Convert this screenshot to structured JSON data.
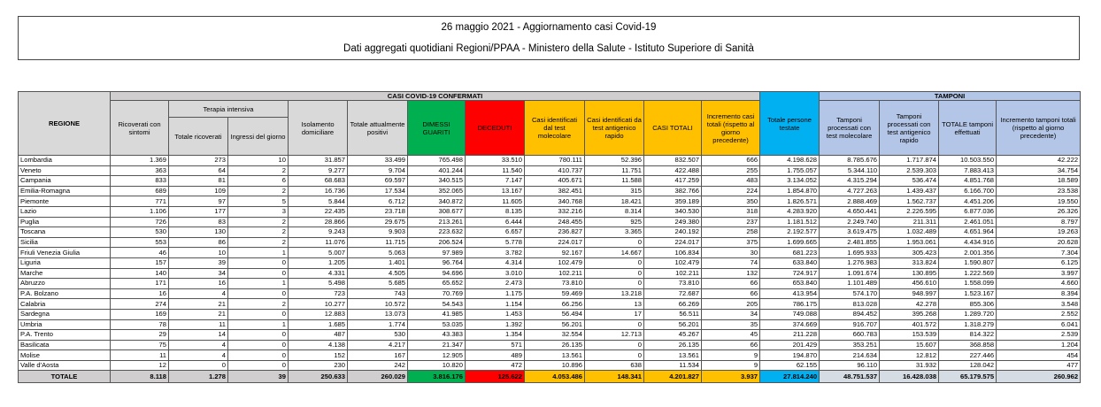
{
  "header": {
    "title": "26 maggio 2021 - Aggiornamento casi Covid-19",
    "subtitle": "Dati aggregati quotidiani Regioni/PPAA - Ministero della Salute - Istituto Superiore di Sanità"
  },
  "table": {
    "region_label": "REGIONE",
    "confirmed_label": "CASI COVID-19 CONFERMATI",
    "icu_label": "Terapia intensiva",
    "tamponi_label": "TAMPONI",
    "columns": [
      "Ricoverati con sintomi",
      "Totale ricoverati",
      "Ingressi del giorno",
      "Isolamento domiciliare",
      "Totale attualmente positivi",
      "DIMESSI GUARITI",
      "DECEDUTI",
      "Casi identificati dal test molecolare",
      "Casi identificati da test antigenico rapido",
      "CASI TOTALI",
      "Incremento casi totali (rispetto al giorno precedente)",
      "Totale persone testate",
      "Tamponi processati con test molecolare",
      "Tamponi processati con test antigenico rapido",
      "TOTALE tamponi effettuati",
      "Incremento tamponi totali (rispetto al giorno precedente)"
    ],
    "rows": [
      [
        "Lombardia",
        "1.369",
        "273",
        "10",
        "31.857",
        "33.499",
        "765.498",
        "33.510",
        "780.111",
        "52.396",
        "832.507",
        "666",
        "4.198.628",
        "8.785.676",
        "1.717.874",
        "10.503.550",
        "42.222"
      ],
      [
        "Veneto",
        "363",
        "64",
        "2",
        "9.277",
        "9.704",
        "401.244",
        "11.540",
        "410.737",
        "11.751",
        "422.488",
        "255",
        "1.755.057",
        "5.344.110",
        "2.539.303",
        "7.883.413",
        "34.754"
      ],
      [
        "Campania",
        "833",
        "81",
        "6",
        "68.683",
        "69.597",
        "340.515",
        "7.147",
        "405.671",
        "11.588",
        "417.259",
        "483",
        "3.134.052",
        "4.315.294",
        "536.474",
        "4.851.768",
        "18.589"
      ],
      [
        "Emilia-Romagna",
        "689",
        "109",
        "2",
        "16.736",
        "17.534",
        "352.065",
        "13.167",
        "382.451",
        "315",
        "382.766",
        "224",
        "1.854.870",
        "4.727.263",
        "1.439.437",
        "6.166.700",
        "23.538"
      ],
      [
        "Piemonte",
        "771",
        "97",
        "5",
        "5.844",
        "6.712",
        "340.872",
        "11.605",
        "340.768",
        "18.421",
        "359.189",
        "350",
        "1.826.571",
        "2.888.469",
        "1.562.737",
        "4.451.206",
        "19.550"
      ],
      [
        "Lazio",
        "1.106",
        "177",
        "3",
        "22.435",
        "23.718",
        "308.677",
        "8.135",
        "332.216",
        "8.314",
        "340.530",
        "318",
        "4.283.920",
        "4.650.441",
        "2.226.595",
        "6.877.036",
        "26.326"
      ],
      [
        "Puglia",
        "726",
        "83",
        "2",
        "28.866",
        "29.675",
        "213.261",
        "6.444",
        "248.455",
        "925",
        "249.380",
        "237",
        "1.181.512",
        "2.249.740",
        "211.311",
        "2.461.051",
        "8.797"
      ],
      [
        "Toscana",
        "530",
        "130",
        "2",
        "9.243",
        "9.903",
        "223.632",
        "6.657",
        "236.827",
        "3.365",
        "240.192",
        "258",
        "2.192.577",
        "3.619.475",
        "1.032.489",
        "4.651.964",
        "19.263"
      ],
      [
        "Sicilia",
        "553",
        "86",
        "2",
        "11.076",
        "11.715",
        "206.524",
        "5.778",
        "224.017",
        "0",
        "224.017",
        "375",
        "1.699.665",
        "2.481.855",
        "1.953.061",
        "4.434.916",
        "20.628"
      ],
      [
        "Friuli Venezia Giulia",
        "46",
        "10",
        "1",
        "5.007",
        "5.063",
        "97.989",
        "3.782",
        "92.167",
        "14.667",
        "106.834",
        "30",
        "681.223",
        "1.695.933",
        "305.423",
        "2.001.356",
        "7.304"
      ],
      [
        "Liguria",
        "157",
        "39",
        "0",
        "1.205",
        "1.401",
        "96.764",
        "4.314",
        "102.479",
        "0",
        "102.479",
        "74",
        "633.840",
        "1.276.983",
        "313.824",
        "1.590.807",
        "6.125"
      ],
      [
        "Marche",
        "140",
        "34",
        "0",
        "4.331",
        "4.505",
        "94.696",
        "3.010",
        "102.211",
        "0",
        "102.211",
        "132",
        "724.917",
        "1.091.674",
        "130.895",
        "1.222.569",
        "3.997"
      ],
      [
        "Abruzzo",
        "171",
        "16",
        "1",
        "5.498",
        "5.685",
        "65.652",
        "2.473",
        "73.810",
        "0",
        "73.810",
        "66",
        "653.840",
        "1.101.489",
        "456.610",
        "1.558.099",
        "4.660"
      ],
      [
        "P.A. Bolzano",
        "16",
        "4",
        "0",
        "723",
        "743",
        "70.769",
        "1.175",
        "59.469",
        "13.218",
        "72.687",
        "66",
        "413.954",
        "574.170",
        "948.997",
        "1.523.167",
        "8.394"
      ],
      [
        "Calabria",
        "274",
        "21",
        "2",
        "10.277",
        "10.572",
        "54.543",
        "1.154",
        "66.256",
        "13",
        "66.269",
        "205",
        "786.175",
        "813.028",
        "42.278",
        "855.306",
        "3.548"
      ],
      [
        "Sardegna",
        "169",
        "21",
        "0",
        "12.883",
        "13.073",
        "41.985",
        "1.453",
        "56.494",
        "17",
        "56.511",
        "34",
        "749.088",
        "894.452",
        "395.268",
        "1.289.720",
        "2.552"
      ],
      [
        "Umbria",
        "78",
        "11",
        "1",
        "1.685",
        "1.774",
        "53.035",
        "1.392",
        "56.201",
        "0",
        "56.201",
        "35",
        "374.669",
        "916.707",
        "401.572",
        "1.318.279",
        "6.041"
      ],
      [
        "P.A. Trento",
        "29",
        "14",
        "0",
        "487",
        "530",
        "43.383",
        "1.354",
        "32.554",
        "12.713",
        "45.267",
        "45",
        "211.228",
        "660.783",
        "153.539",
        "814.322",
        "2.539"
      ],
      [
        "Basilicata",
        "75",
        "4",
        "0",
        "4.138",
        "4.217",
        "21.347",
        "571",
        "26.135",
        "0",
        "26.135",
        "66",
        "201.429",
        "353.251",
        "15.607",
        "368.858",
        "1.204"
      ],
      [
        "Molise",
        "11",
        "4",
        "0",
        "152",
        "167",
        "12.905",
        "489",
        "13.561",
        "0",
        "13.561",
        "9",
        "194.870",
        "214.634",
        "12.812",
        "227.446",
        "454"
      ],
      [
        "Valle d'Aosta",
        "12",
        "0",
        "0",
        "230",
        "242",
        "10.820",
        "472",
        "10.896",
        "638",
        "11.534",
        "9",
        "62.155",
        "96.110",
        "31.932",
        "128.042",
        "477"
      ]
    ],
    "total": [
      "TOTALE",
      "8.118",
      "1.278",
      "39",
      "250.633",
      "260.029",
      "3.816.176",
      "125.622",
      "4.053.486",
      "148.341",
      "4.201.827",
      "3.937",
      "27.814.240",
      "48.751.537",
      "16.428.038",
      "65.179.575",
      "260.962"
    ]
  }
}
